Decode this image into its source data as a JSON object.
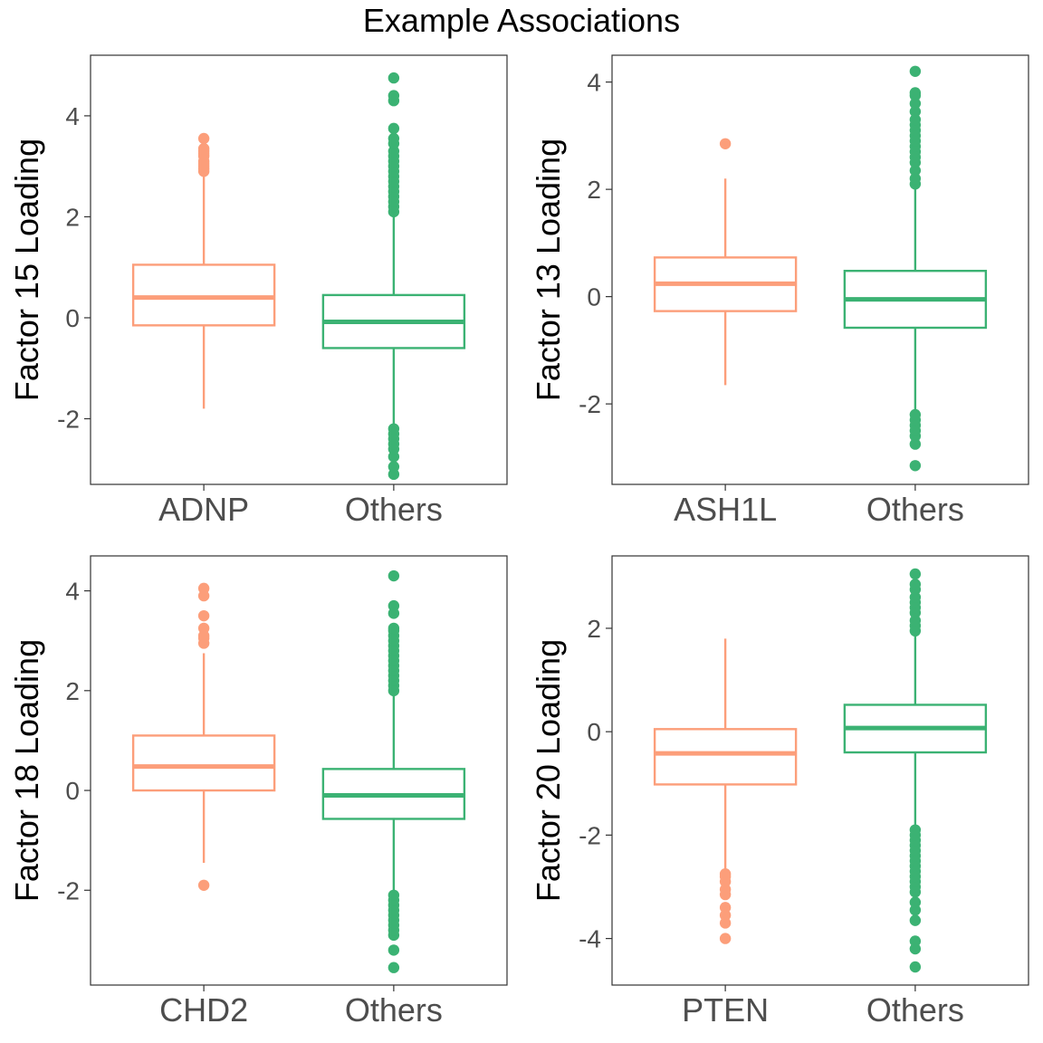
{
  "title": "Example Associations",
  "colors": {
    "gene": "#fc9e7a",
    "others": "#3bb273",
    "panel_border": "#333333",
    "tick_text": "#4d4d4d"
  },
  "chart_data": [
    {
      "type": "box",
      "ylabel": "Factor 15 Loading",
      "categories": [
        "ADNP",
        "Others"
      ],
      "ylim": [
        -3.3,
        5.2
      ],
      "yticks": [
        -2,
        0,
        2,
        4
      ],
      "yticklabels": [
        "-2",
        "0",
        "2",
        "4"
      ],
      "boxes": [
        {
          "name": "ADNP",
          "color": "gene",
          "q1": -0.15,
          "median": 0.4,
          "q3": 1.05,
          "whisker_low": -1.8,
          "whisker_high": 2.9,
          "outliers": [
            2.9,
            2.95,
            3.0,
            3.05,
            3.1,
            3.2,
            3.25,
            3.3,
            3.35,
            3.55
          ]
        },
        {
          "name": "Others",
          "color": "others",
          "q1": -0.6,
          "median": -0.08,
          "q3": 0.45,
          "whisker_low": -2.2,
          "whisker_high": 2.05,
          "outliers": [
            -3.1,
            -2.95,
            -2.75,
            -2.6,
            -2.5,
            -2.4,
            -2.3,
            -2.2,
            2.1,
            2.2,
            2.3,
            2.4,
            2.5,
            2.6,
            2.7,
            2.8,
            2.9,
            3.0,
            3.1,
            3.2,
            3.3,
            3.45,
            3.55,
            3.75,
            4.3,
            4.4,
            4.75
          ]
        }
      ]
    },
    {
      "type": "box",
      "ylabel": "Factor 13 Loading",
      "categories": [
        "ASH1L",
        "Others"
      ],
      "ylim": [
        -3.5,
        4.5
      ],
      "yticks": [
        -2,
        0,
        2,
        4
      ],
      "yticklabels": [
        "-2",
        "0",
        "2",
        "4"
      ],
      "boxes": [
        {
          "name": "ASH1L",
          "color": "gene",
          "q1": -0.27,
          "median": 0.24,
          "q3": 0.73,
          "whisker_low": -1.65,
          "whisker_high": 2.2,
          "outliers": [
            2.85
          ]
        },
        {
          "name": "Others",
          "color": "others",
          "q1": -0.58,
          "median": -0.05,
          "q3": 0.48,
          "whisker_low": -2.2,
          "whisker_high": 2.1,
          "outliers": [
            -3.15,
            -2.75,
            -2.6,
            -2.5,
            -2.4,
            -2.3,
            -2.2,
            2.1,
            2.2,
            2.35,
            2.5,
            2.6,
            2.7,
            2.8,
            2.9,
            3.0,
            3.1,
            3.2,
            3.3,
            3.45,
            3.6,
            3.75,
            3.8,
            4.2
          ]
        }
      ]
    },
    {
      "type": "box",
      "ylabel": "Factor 18 Loading",
      "categories": [
        "CHD2",
        "Others"
      ],
      "ylim": [
        -3.9,
        4.7
      ],
      "yticks": [
        -2,
        0,
        2,
        4
      ],
      "yticklabels": [
        "-2",
        "0",
        "2",
        "4"
      ],
      "boxes": [
        {
          "name": "CHD2",
          "color": "gene",
          "q1": 0.0,
          "median": 0.48,
          "q3": 1.1,
          "whisker_low": -1.45,
          "whisker_high": 2.75,
          "outliers": [
            -1.9,
            2.95,
            3.05,
            3.1,
            3.25,
            3.5,
            3.9,
            4.05
          ]
        },
        {
          "name": "Others",
          "color": "others",
          "q1": -0.57,
          "median": -0.1,
          "q3": 0.43,
          "whisker_low": -2.1,
          "whisker_high": 1.95,
          "outliers": [
            -3.55,
            -3.2,
            -2.9,
            -2.8,
            -2.7,
            -2.6,
            -2.5,
            -2.4,
            -2.3,
            -2.2,
            -2.1,
            2.0,
            2.1,
            2.2,
            2.3,
            2.4,
            2.5,
            2.6,
            2.7,
            2.8,
            2.9,
            3.0,
            3.1,
            3.2,
            3.25,
            3.55,
            3.7,
            4.3
          ]
        }
      ]
    },
    {
      "type": "box",
      "ylabel": "Factor 20 Loading",
      "categories": [
        "PTEN",
        "Others"
      ],
      "ylim": [
        -4.9,
        3.4
      ],
      "yticks": [
        -4,
        -2,
        0,
        2
      ],
      "yticklabels": [
        "-4",
        "-2",
        "0",
        "2"
      ],
      "boxes": [
        {
          "name": "PTEN",
          "color": "gene",
          "q1": -1.02,
          "median": -0.42,
          "q3": 0.05,
          "whisker_low": -2.65,
          "whisker_high": 1.8,
          "outliers": [
            -4.0,
            -3.7,
            -3.55,
            -3.4,
            -3.15,
            -3.05,
            -2.9,
            -2.8,
            -2.75
          ]
        },
        {
          "name": "Others",
          "color": "others",
          "q1": -0.4,
          "median": 0.07,
          "q3": 0.52,
          "whisker_low": -1.85,
          "whisker_high": 1.9,
          "outliers": [
            -4.55,
            -4.2,
            -4.05,
            -3.65,
            -3.45,
            -3.3,
            -3.1,
            -3.0,
            -2.9,
            -2.8,
            -2.7,
            -2.6,
            -2.5,
            -2.4,
            -2.3,
            -2.2,
            -2.1,
            -2.0,
            -1.9,
            1.95,
            2.05,
            2.15,
            2.3,
            2.4,
            2.5,
            2.6,
            2.75,
            2.85,
            3.05
          ]
        }
      ]
    }
  ]
}
